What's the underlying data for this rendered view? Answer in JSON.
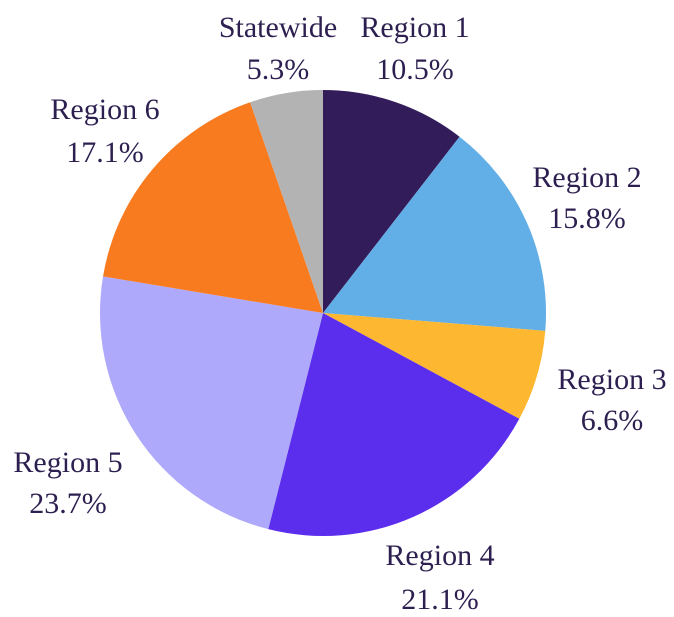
{
  "chart_data": {
    "type": "pie",
    "categories": [
      "Region 1",
      "Region 2",
      "Region 3",
      "Region 4",
      "Region 5",
      "Region 6",
      "Statewide"
    ],
    "values": [
      10.5,
      15.8,
      6.6,
      21.1,
      23.7,
      17.1,
      5.3
    ],
    "value_labels": [
      "10.5%",
      "15.8%",
      "6.6%",
      "21.1%",
      "23.7%",
      "17.1%",
      "5.3%"
    ],
    "colors": [
      "#321d5a",
      "#62aee6",
      "#fdb731",
      "#5b2ded",
      "#aea9fb",
      "#f97b20",
      "#b3b3b3"
    ]
  }
}
